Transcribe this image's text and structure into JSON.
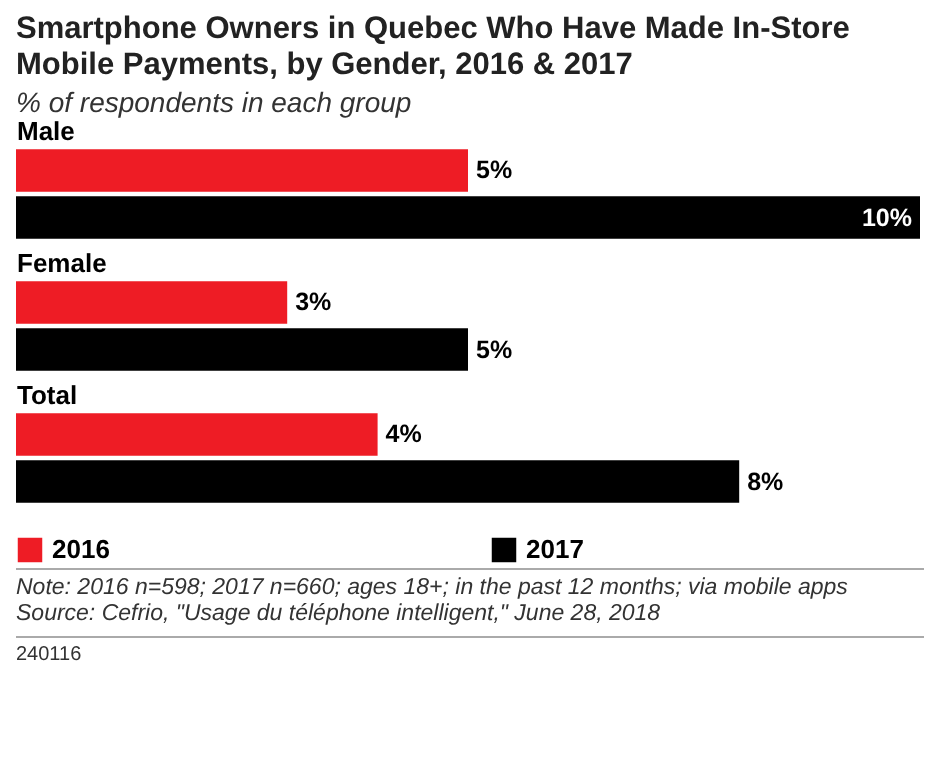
{
  "chart_data": {
    "type": "bar",
    "orientation": "horizontal",
    "title": "Smartphone Owners in Quebec Who Have Made In-Store Mobile Payments, by Gender, 2016 & 2017",
    "subtitle": "% of respondents in each group",
    "categories": [
      "Male",
      "Female",
      "Total"
    ],
    "series": [
      {
        "name": "2016",
        "color": "#ee1c25",
        "values": [
          5,
          3,
          4
        ],
        "value_labels": [
          "5%",
          "3%",
          "4%"
        ]
      },
      {
        "name": "2017",
        "color": "#000000",
        "values": [
          10,
          5,
          8
        ],
        "value_labels": [
          "10%",
          "5%",
          "8%"
        ]
      }
    ],
    "legend": "bottom",
    "annotations": [
      "Note: 2016 n=598; 2017 n=660; ages 18+; in the past 12 months; via mobile apps",
      "Source: Cefrio, \"Usage du téléphone intelligent,\" June 28, 2018",
      "240116"
    ]
  }
}
